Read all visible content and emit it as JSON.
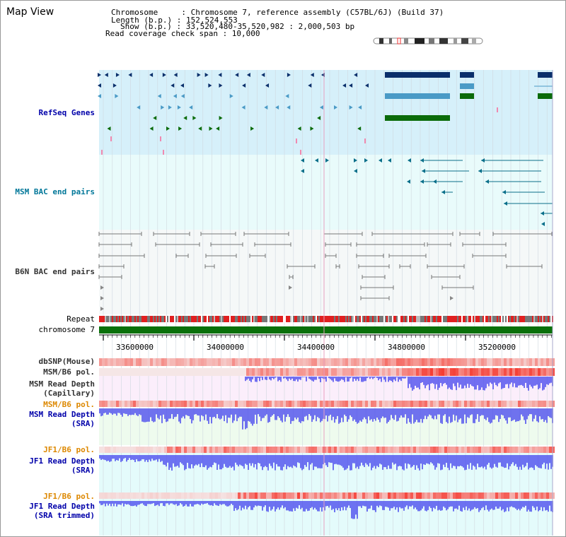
{
  "header": {
    "title": "Map View",
    "info_lines": [
      "Chromosome     : Chromosome 7, reference assembly (C57BL/6J) (Build 37)",
      "Length (b.p.) : 152,524,553",
      "Show (b.p.) : 33,520,480-35,520,982 : 2,000,503 bp",
      "Read coverage check span : 10,000"
    ]
  },
  "tracks": {
    "refseq": {
      "label": "RefSeq Genes",
      "color": "#0000aa"
    },
    "msm_bac": {
      "label": "MSM BAC end pairs",
      "color": "#007799"
    },
    "b6n_bac": {
      "label": "B6N BAC end pairs",
      "color": "#333333"
    },
    "repeat": {
      "label": "Repeat",
      "color": "#000000"
    },
    "chromosome": {
      "label": "chromosome 7",
      "color": "#000000"
    },
    "dbsnp": {
      "label": "dbSNP(Mouse)",
      "color": "#333333"
    },
    "msm_b6_pol_1": {
      "label": "MSM/B6 pol.",
      "color": "#333333"
    },
    "msm_depth_cap": {
      "label": "MSM Read Depth\n(Capillary)",
      "color": "#333333"
    },
    "msm_b6_pol_2": {
      "label": "MSM/B6 pol.",
      "color": "#dd8800"
    },
    "msm_depth_sra": {
      "label": "MSM Read Depth\n(SRA)",
      "color": "#0000aa"
    },
    "jf1_pol_1": {
      "label": "JF1/B6 pol.",
      "color": "#dd8800"
    },
    "jf1_depth_sra": {
      "label": "JF1 Read Depth\n(SRA)",
      "color": "#0000aa"
    },
    "jf1_pol_2": {
      "label": "JF1/B6 pol.",
      "color": "#dd8800"
    },
    "jf1_depth_trim": {
      "label": "JF1 Read Depth\n(SRA trimmed)",
      "color": "#0000aa"
    }
  },
  "axis": {
    "ticks": [
      "33600000",
      "34000000",
      "34400000",
      "34800000",
      "35200000"
    ]
  },
  "colors": {
    "refseq_bg": "#d6f0fa",
    "bac_bg": "#e9fbfb",
    "b6n_bg": "#f5f8f8",
    "pink_bg": "#fbeefb",
    "green_bg": "#eefbee",
    "cyan_bg": "#e4fbfb",
    "gene_dark": "#0a2f6b",
    "gene_mid": "#4a9ac6",
    "gene_green": "#0a6b0a",
    "msm_teal": "#0a6f8a",
    "depth_blue": "#4444ee",
    "chrom_green": "#0a700a"
  }
}
